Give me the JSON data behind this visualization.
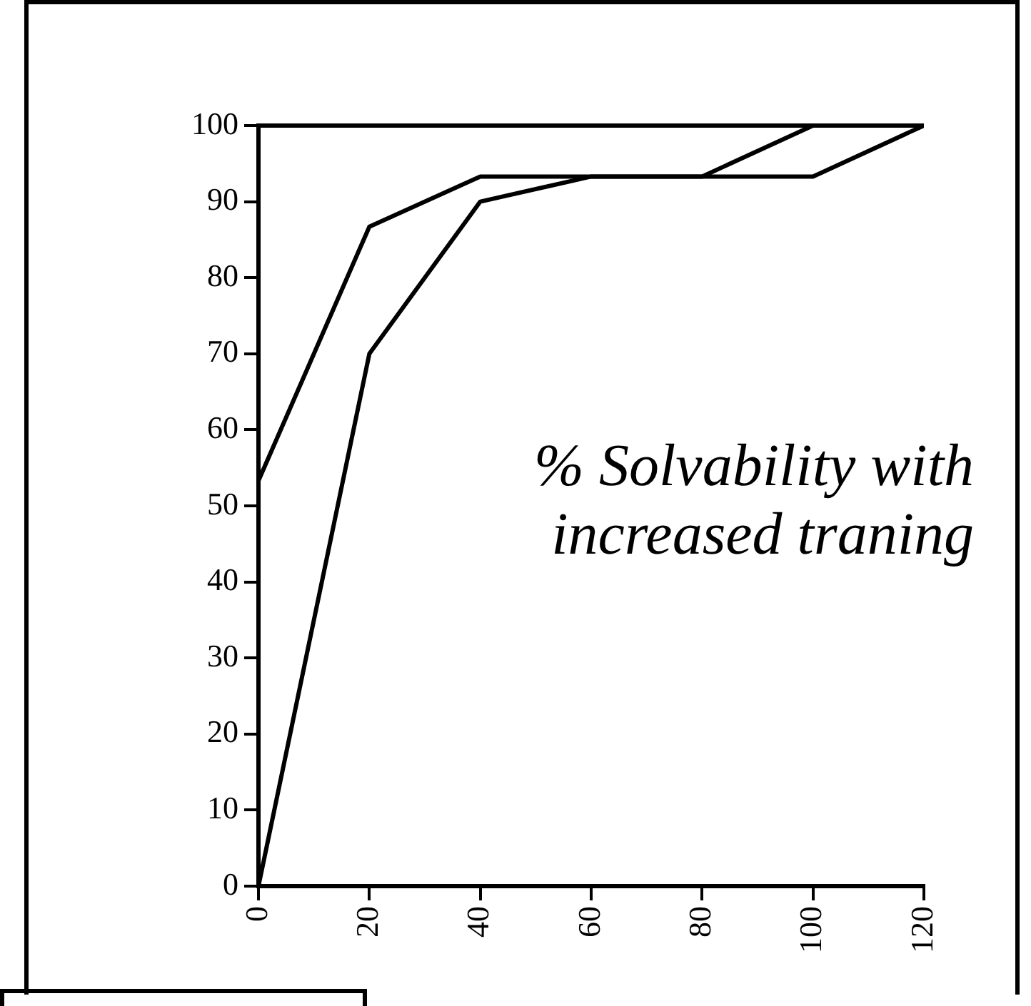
{
  "chart_data": {
    "type": "line",
    "x": [
      0,
      20,
      40,
      60,
      80,
      100,
      120
    ],
    "series": [
      {
        "color": "#000000",
        "values": [
          53.3,
          86.7,
          93.3,
          93.3,
          93.3,
          100,
          100
        ]
      },
      {
        "color": "#000000",
        "values": [
          0,
          70,
          90,
          93.3,
          93.3,
          93.3,
          100
        ]
      }
    ],
    "xlim": [
      0,
      120
    ],
    "xticks": [
      0,
      20,
      40,
      60,
      80,
      100,
      120
    ],
    "ylim": [
      0,
      100
    ],
    "yticks": [
      0,
      10,
      20,
      30,
      40,
      50,
      60,
      70,
      80,
      90,
      100
    ],
    "annotations": [
      "% Solvability with increased traning"
    ],
    "grid": false,
    "legend": false,
    "marker": "none",
    "line_style": "solid"
  }
}
